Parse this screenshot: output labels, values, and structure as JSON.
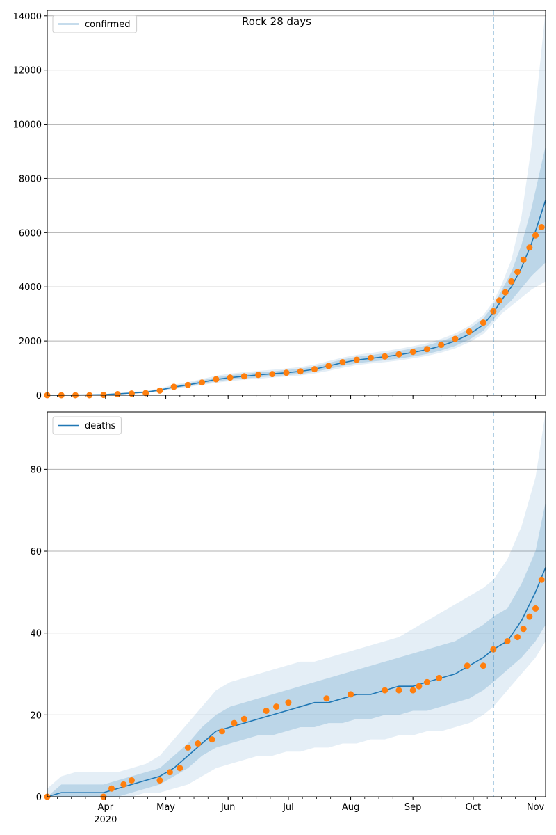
{
  "figure": {
    "title": "Rock 28 days",
    "x_tick_labels": [
      "Apr",
      "May",
      "Jun",
      "Jul",
      "Aug",
      "Sep",
      "Oct",
      "Nov"
    ],
    "year_label": "2020"
  },
  "colors": {
    "line": "#1f77b4",
    "points": "#ff7f0e",
    "band": "#1f77b4",
    "grid": "#b0b0b0",
    "vline": "#1f77b4"
  },
  "chart_data": [
    {
      "type": "line",
      "legend": [
        "confirmed"
      ],
      "legend_placement": "top-left",
      "grid": "horizontal",
      "x_type": "date",
      "xlim": [
        "2020-03-03",
        "2020-11-06"
      ],
      "ylim": [
        0,
        14200
      ],
      "y_ticks": [
        0,
        2000,
        4000,
        6000,
        8000,
        10000,
        12000,
        14000
      ],
      "forecast_start": "2020-10-11",
      "series": [
        {
          "name": "confirmed",
          "kind": "model-median",
          "x": [
            "2020-03-03",
            "2020-03-17",
            "2020-03-31",
            "2020-04-07",
            "2020-04-14",
            "2020-04-21",
            "2020-04-28",
            "2020-05-05",
            "2020-05-12",
            "2020-05-19",
            "2020-05-26",
            "2020-06-02",
            "2020-06-09",
            "2020-06-16",
            "2020-06-23",
            "2020-06-30",
            "2020-07-07",
            "2020-07-14",
            "2020-07-21",
            "2020-07-28",
            "2020-08-04",
            "2020-08-11",
            "2020-08-18",
            "2020-08-25",
            "2020-09-01",
            "2020-09-08",
            "2020-09-15",
            "2020-09-22",
            "2020-09-29",
            "2020-10-06",
            "2020-10-11",
            "2020-10-15",
            "2020-10-20",
            "2020-10-25",
            "2020-10-30",
            "2020-11-06"
          ],
          "y": [
            0,
            5,
            20,
            50,
            80,
            110,
            190,
            300,
            380,
            480,
            580,
            650,
            700,
            750,
            790,
            830,
            880,
            960,
            1080,
            1200,
            1300,
            1360,
            1420,
            1490,
            1580,
            1680,
            1820,
            2000,
            2250,
            2600,
            3050,
            3500,
            4000,
            4700,
            5600,
            7200
          ],
          "band_80": [
            [
              0,
              0
            ],
            [
              0,
              10
            ],
            [
              10,
              30
            ],
            [
              35,
              65
            ],
            [
              60,
              100
            ],
            [
              90,
              135
            ],
            [
              160,
              220
            ],
            [
              260,
              350
            ],
            [
              330,
              440
            ],
            [
              420,
              550
            ],
            [
              510,
              660
            ],
            [
              570,
              740
            ],
            [
              620,
              790
            ],
            [
              660,
              840
            ],
            [
              700,
              880
            ],
            [
              740,
              930
            ],
            [
              780,
              980
            ],
            [
              860,
              1060
            ],
            [
              970,
              1190
            ],
            [
              1080,
              1320
            ],
            [
              1180,
              1420
            ],
            [
              1240,
              1480
            ],
            [
              1290,
              1550
            ],
            [
              1350,
              1630
            ],
            [
              1430,
              1730
            ],
            [
              1520,
              1840
            ],
            [
              1650,
              1990
            ],
            [
              1820,
              2180
            ],
            [
              2050,
              2450
            ],
            [
              2380,
              2830
            ],
            [
              2790,
              3320
            ],
            [
              3150,
              3850
            ],
            [
              3500,
              4550
            ],
            [
              3950,
              5550
            ],
            [
              4400,
              6900
            ],
            [
              4900,
              9200
            ]
          ],
          "band_95": [
            [
              0,
              0
            ],
            [
              0,
              15
            ],
            [
              5,
              40
            ],
            [
              25,
              80
            ],
            [
              50,
              120
            ],
            [
              75,
              160
            ],
            [
              140,
              250
            ],
            [
              230,
              390
            ],
            [
              300,
              480
            ],
            [
              380,
              600
            ],
            [
              460,
              720
            ],
            [
              520,
              800
            ],
            [
              570,
              850
            ],
            [
              610,
              900
            ],
            [
              650,
              940
            ],
            [
              690,
              990
            ],
            [
              730,
              1040
            ],
            [
              800,
              1130
            ],
            [
              900,
              1260
            ],
            [
              1010,
              1390
            ],
            [
              1110,
              1490
            ],
            [
              1170,
              1560
            ],
            [
              1220,
              1630
            ],
            [
              1280,
              1710
            ],
            [
              1360,
              1810
            ],
            [
              1450,
              1920
            ],
            [
              1570,
              2080
            ],
            [
              1730,
              2280
            ],
            [
              1950,
              2560
            ],
            [
              2260,
              2950
            ],
            [
              2650,
              3460
            ],
            [
              3000,
              4050
            ],
            [
              3300,
              5000
            ],
            [
              3600,
              6600
            ],
            [
              3900,
              9200
            ],
            [
              4200,
              14200
            ]
          ]
        },
        {
          "name": "observed",
          "kind": "points",
          "x": [
            "2020-03-03",
            "2020-03-10",
            "2020-03-17",
            "2020-03-24",
            "2020-03-31",
            "2020-04-07",
            "2020-04-14",
            "2020-04-21",
            "2020-04-28",
            "2020-05-05",
            "2020-05-12",
            "2020-05-19",
            "2020-05-26",
            "2020-06-02",
            "2020-06-09",
            "2020-06-16",
            "2020-06-23",
            "2020-06-30",
            "2020-07-07",
            "2020-07-14",
            "2020-07-21",
            "2020-07-28",
            "2020-08-04",
            "2020-08-11",
            "2020-08-18",
            "2020-08-25",
            "2020-09-01",
            "2020-09-08",
            "2020-09-15",
            "2020-09-22",
            "2020-09-29",
            "2020-10-06",
            "2020-10-11",
            "2020-10-14",
            "2020-10-17",
            "2020-10-20",
            "2020-10-23",
            "2020-10-26",
            "2020-10-29",
            "2020-11-01",
            "2020-11-04"
          ],
          "y": [
            0,
            0,
            0,
            0,
            10,
            40,
            60,
            80,
            170,
            310,
            380,
            470,
            590,
            650,
            700,
            750,
            780,
            830,
            880,
            960,
            1080,
            1220,
            1310,
            1380,
            1430,
            1510,
            1600,
            1700,
            1860,
            2080,
            2350,
            2680,
            3100,
            3500,
            3800,
            4200,
            4550,
            5000,
            5450,
            5900,
            6200
          ]
        }
      ]
    },
    {
      "type": "line",
      "legend": [
        "deaths"
      ],
      "legend_placement": "top-left",
      "grid": "horizontal",
      "x_type": "date",
      "xlim": [
        "2020-03-03",
        "2020-11-06"
      ],
      "ylim": [
        0,
        94
      ],
      "y_ticks": [
        0,
        20,
        40,
        60,
        80
      ],
      "forecast_start": "2020-10-11",
      "series": [
        {
          "name": "deaths",
          "kind": "model-median",
          "x": [
            "2020-03-03",
            "2020-03-10",
            "2020-03-17",
            "2020-03-24",
            "2020-03-31",
            "2020-04-07",
            "2020-04-14",
            "2020-04-21",
            "2020-04-28",
            "2020-05-05",
            "2020-05-12",
            "2020-05-19",
            "2020-05-26",
            "2020-06-02",
            "2020-06-09",
            "2020-06-16",
            "2020-06-23",
            "2020-06-30",
            "2020-07-07",
            "2020-07-14",
            "2020-07-21",
            "2020-07-28",
            "2020-08-04",
            "2020-08-11",
            "2020-08-18",
            "2020-08-25",
            "2020-09-01",
            "2020-09-08",
            "2020-09-15",
            "2020-09-22",
            "2020-09-29",
            "2020-10-06",
            "2020-10-11",
            "2020-10-18",
            "2020-10-25",
            "2020-11-01",
            "2020-11-06"
          ],
          "y": [
            0,
            1,
            1,
            1,
            1,
            2,
            3,
            4,
            5,
            7,
            10,
            13,
            16,
            17,
            18,
            19,
            20,
            21,
            22,
            23,
            23,
            24,
            25,
            25,
            26,
            27,
            27,
            28,
            29,
            30,
            32,
            34,
            36,
            38,
            43,
            50,
            56
          ],
          "band_80": [
            [
              0,
              0
            ],
            [
              0,
              3
            ],
            [
              0,
              3
            ],
            [
              0,
              3
            ],
            [
              0,
              3
            ],
            [
              0,
              4
            ],
            [
              1,
              5
            ],
            [
              2,
              6
            ],
            [
              3,
              7
            ],
            [
              5,
              10
            ],
            [
              7,
              13
            ],
            [
              10,
              17
            ],
            [
              12,
              20
            ],
            [
              13,
              22
            ],
            [
              14,
              23
            ],
            [
              15,
              24
            ],
            [
              15,
              25
            ],
            [
              16,
              26
            ],
            [
              17,
              27
            ],
            [
              17,
              28
            ],
            [
              18,
              29
            ],
            [
              18,
              30
            ],
            [
              19,
              31
            ],
            [
              19,
              32
            ],
            [
              20,
              33
            ],
            [
              20,
              34
            ],
            [
              21,
              35
            ],
            [
              21,
              36
            ],
            [
              22,
              37
            ],
            [
              23,
              38
            ],
            [
              24,
              40
            ],
            [
              26,
              42
            ],
            [
              28,
              44
            ],
            [
              31,
              46
            ],
            [
              34,
              52
            ],
            [
              38,
              60
            ],
            [
              42,
              72
            ]
          ],
          "band_95": [
            [
              0,
              2
            ],
            [
              0,
              5
            ],
            [
              0,
              6
            ],
            [
              0,
              6
            ],
            [
              0,
              6
            ],
            [
              0,
              6
            ],
            [
              0,
              7
            ],
            [
              1,
              8
            ],
            [
              1,
              10
            ],
            [
              2,
              14
            ],
            [
              3,
              18
            ],
            [
              5,
              22
            ],
            [
              7,
              26
            ],
            [
              8,
              28
            ],
            [
              9,
              29
            ],
            [
              10,
              30
            ],
            [
              10,
              31
            ],
            [
              11,
              32
            ],
            [
              11,
              33
            ],
            [
              12,
              33
            ],
            [
              12,
              34
            ],
            [
              13,
              35
            ],
            [
              13,
              36
            ],
            [
              14,
              37
            ],
            [
              14,
              38
            ],
            [
              15,
              39
            ],
            [
              15,
              41
            ],
            [
              16,
              43
            ],
            [
              16,
              45
            ],
            [
              17,
              47
            ],
            [
              18,
              49
            ],
            [
              20,
              51
            ],
            [
              22,
              53
            ],
            [
              26,
              58
            ],
            [
              30,
              66
            ],
            [
              34,
              78
            ],
            [
              38,
              94
            ]
          ]
        },
        {
          "name": "observed",
          "kind": "points",
          "x": [
            "2020-03-03",
            "2020-03-31",
            "2020-04-04",
            "2020-04-10",
            "2020-04-14",
            "2020-04-28",
            "2020-05-03",
            "2020-05-08",
            "2020-05-12",
            "2020-05-17",
            "2020-05-24",
            "2020-05-29",
            "2020-06-04",
            "2020-06-09",
            "2020-06-20",
            "2020-06-25",
            "2020-07-01",
            "2020-07-20",
            "2020-08-01",
            "2020-08-18",
            "2020-08-25",
            "2020-09-01",
            "2020-09-04",
            "2020-09-08",
            "2020-09-14",
            "2020-09-28",
            "2020-10-06",
            "2020-10-11",
            "2020-10-18",
            "2020-10-23",
            "2020-10-26",
            "2020-10-29",
            "2020-11-01",
            "2020-11-04"
          ],
          "y": [
            0,
            0,
            2,
            3,
            4,
            4,
            6,
            7,
            12,
            13,
            14,
            16,
            18,
            19,
            21,
            22,
            23,
            24,
            25,
            26,
            26,
            26,
            27,
            28,
            29,
            32,
            32,
            36,
            38,
            39,
            41,
            44,
            46,
            53
          ]
        }
      ]
    }
  ]
}
